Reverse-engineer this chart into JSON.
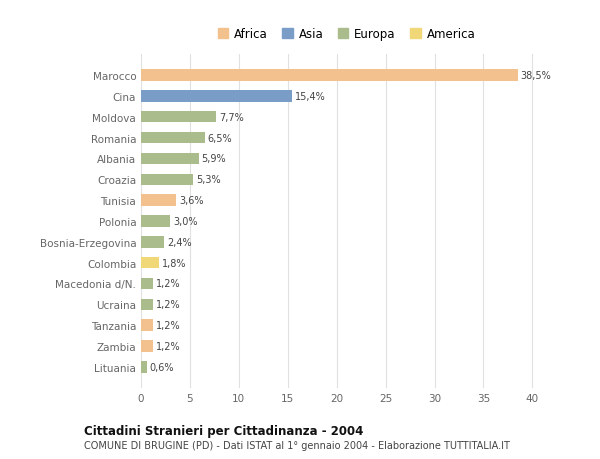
{
  "countries": [
    "Marocco",
    "Cina",
    "Moldova",
    "Romania",
    "Albania",
    "Croazia",
    "Tunisia",
    "Polonia",
    "Bosnia-Erzegovina",
    "Colombia",
    "Macedonia d/N.",
    "Ucraina",
    "Tanzania",
    "Zambia",
    "Lituania"
  ],
  "values": [
    38.5,
    15.4,
    7.7,
    6.5,
    5.9,
    5.3,
    3.6,
    3.0,
    2.4,
    1.8,
    1.2,
    1.2,
    1.2,
    1.2,
    0.6
  ],
  "labels": [
    "38,5%",
    "15,4%",
    "7,7%",
    "6,5%",
    "5,9%",
    "5,3%",
    "3,6%",
    "3,0%",
    "2,4%",
    "1,8%",
    "1,2%",
    "1,2%",
    "1,2%",
    "1,2%",
    "0,6%"
  ],
  "continents": [
    "Africa",
    "Asia",
    "Europa",
    "Europa",
    "Europa",
    "Europa",
    "Africa",
    "Europa",
    "Europa",
    "America",
    "Europa",
    "Europa",
    "Africa",
    "Africa",
    "Europa"
  ],
  "colors": {
    "Africa": "#F2C18D",
    "Asia": "#7A9DC8",
    "Europa": "#AABB8C",
    "America": "#F0D878"
  },
  "legend_order": [
    "Africa",
    "Asia",
    "Europa",
    "America"
  ],
  "legend_colors": [
    "#F2C18D",
    "#7A9DC8",
    "#AABB8C",
    "#F0D878"
  ],
  "title_bold": "Cittadini Stranieri per Cittadinanza - 2004",
  "subtitle": "COMUNE DI BRUGINE (PD) - Dati ISTAT al 1° gennaio 2004 - Elaborazione TUTTITALIA.IT",
  "xlim": [
    0,
    42
  ],
  "xticks": [
    0,
    5,
    10,
    15,
    20,
    25,
    30,
    35,
    40
  ],
  "grid_color": "#e0e0e0",
  "bg_color": "#ffffff",
  "label_color": "#666666",
  "bar_text_color": "#444444"
}
